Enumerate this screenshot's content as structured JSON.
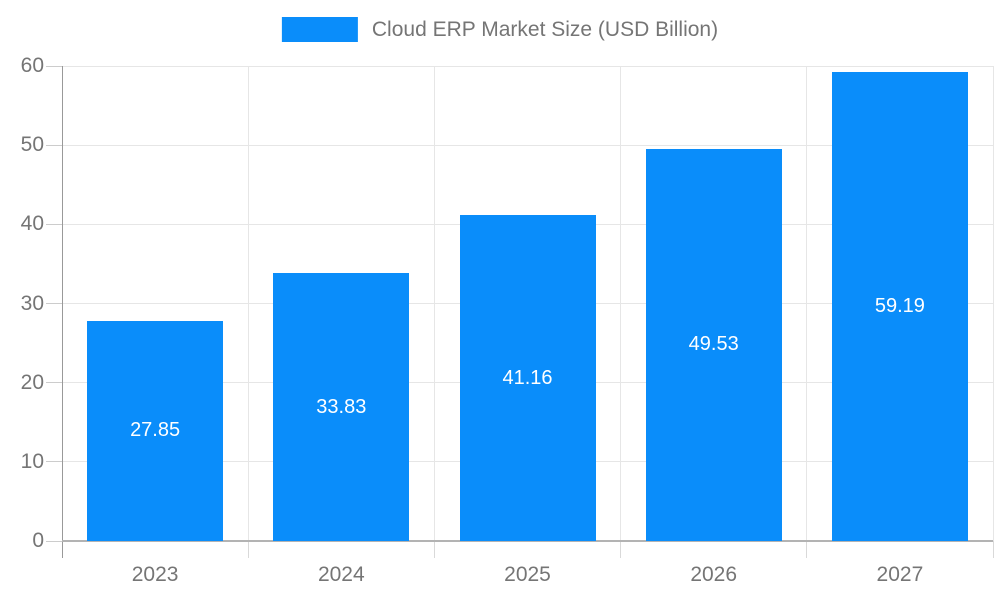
{
  "chart": {
    "legend_label": "Cloud ERP Market Size (USD Billion)"
  },
  "chart_data": {
    "type": "bar",
    "title": "",
    "series_name": "Cloud ERP Market Size (USD Billion)",
    "categories": [
      "2023",
      "2024",
      "2025",
      "2026",
      "2027"
    ],
    "values": [
      27.85,
      33.83,
      41.16,
      49.53,
      59.19
    ],
    "value_labels": [
      "27.85",
      "33.83",
      "41.16",
      "49.53",
      "59.19"
    ],
    "xlabel": "",
    "ylabel": "",
    "ylim": [
      0,
      60
    ],
    "yticks": [
      0,
      10,
      20,
      30,
      40,
      50,
      60
    ],
    "grid": true,
    "legend_position": "top-center",
    "value_labels_inside": true,
    "colors": {
      "bar": "#0a8dfa",
      "value_label_text": "#ffffff",
      "axis_text": "#757575",
      "gridline": "#e6e6e6",
      "y_axis_line": "#999999",
      "x_axis_line": "#b3b3b3",
      "tick_mark": "#cccccc"
    }
  }
}
